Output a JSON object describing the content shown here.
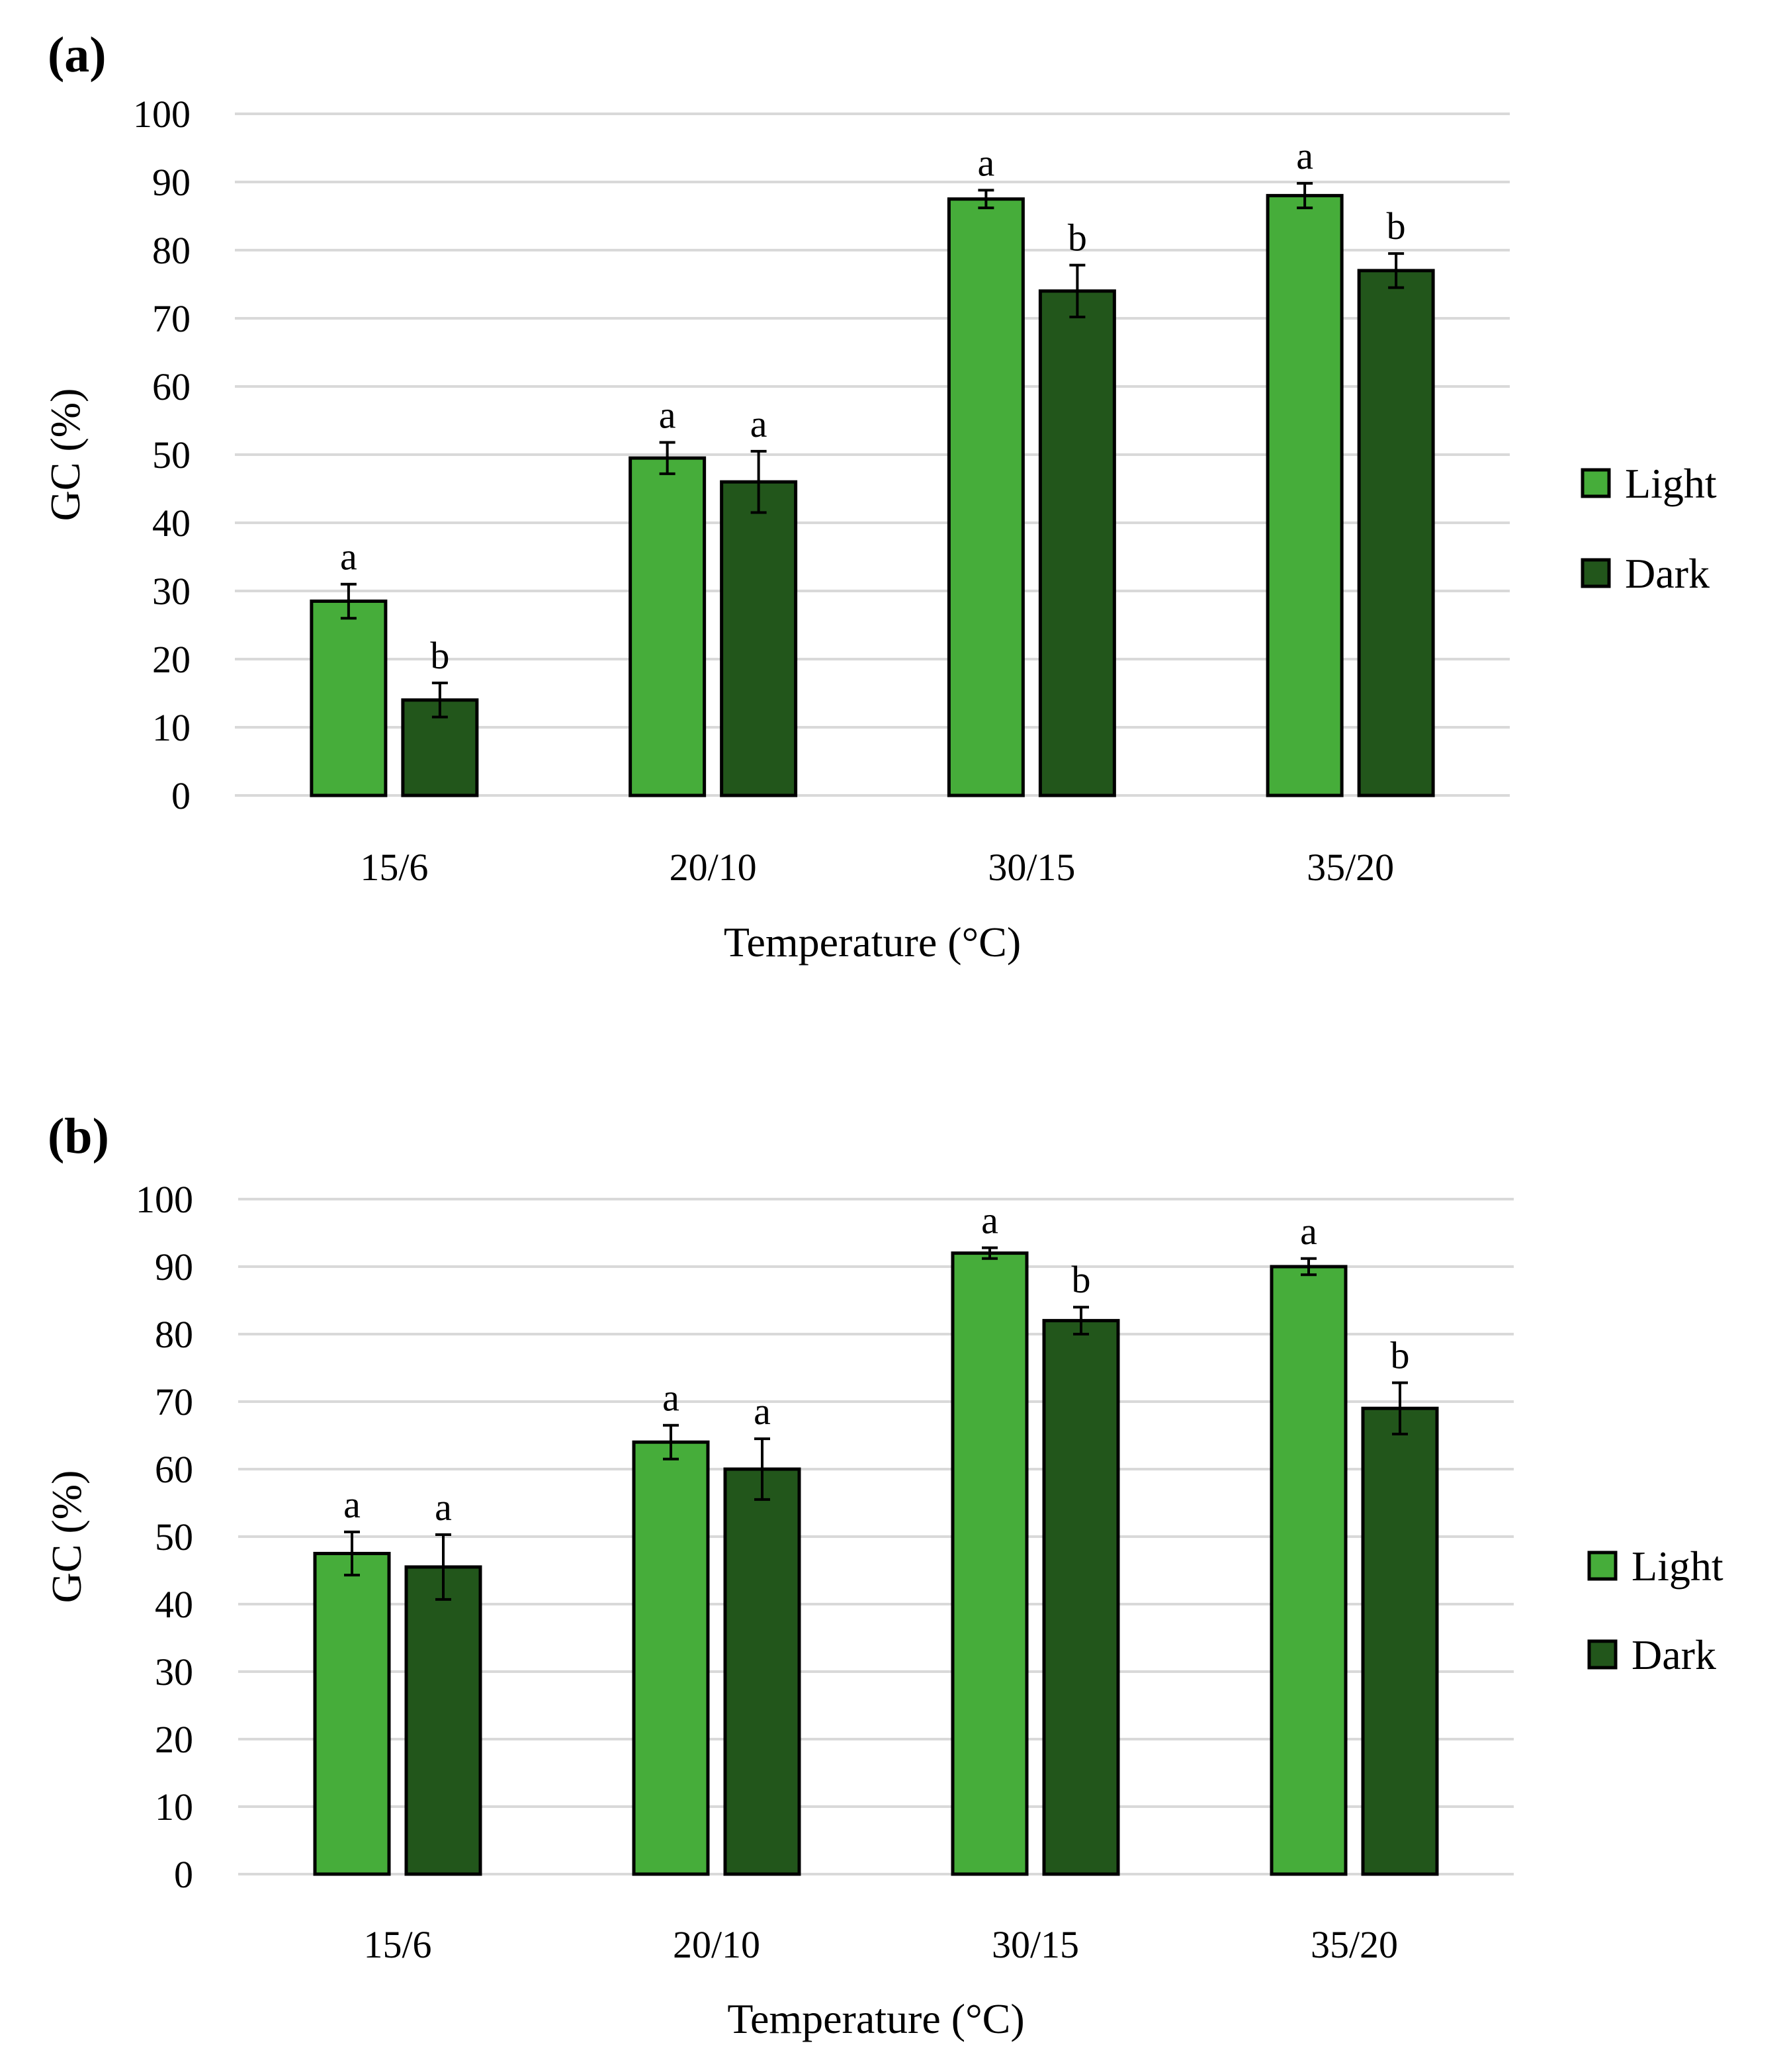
{
  "chart_data": [
    {
      "type": "bar",
      "panel_label": "(a)",
      "title": "",
      "xlabel": "Temperature (°C)",
      "ylabel": "GC (%)",
      "ylim": [
        0,
        100
      ],
      "yticks": [
        0,
        10,
        20,
        30,
        40,
        50,
        60,
        70,
        80,
        90,
        100
      ],
      "categories": [
        "15/6",
        "20/10",
        "30/15",
        "35/20"
      ],
      "grid": true,
      "legend_position": "right",
      "series": [
        {
          "name": "Light",
          "color": "#46ad3a",
          "values": [
            28.5,
            49.5,
            87.5,
            88
          ],
          "errors": [
            2.5,
            2.3,
            1.3,
            1.8
          ],
          "letters": [
            "a",
            "a",
            "a",
            "a"
          ]
        },
        {
          "name": "Dark",
          "color": "#22561b",
          "values": [
            14,
            46,
            74,
            77
          ],
          "errors": [
            2.5,
            4.5,
            3.8,
            2.5
          ],
          "letters": [
            "b",
            "a",
            "b",
            "b"
          ]
        }
      ]
    },
    {
      "type": "bar",
      "panel_label": "(b)",
      "title": "",
      "xlabel": "Temperature (°C)",
      "ylabel": "GC (%)",
      "ylim": [
        0,
        100
      ],
      "yticks": [
        0,
        10,
        20,
        30,
        40,
        50,
        60,
        70,
        80,
        90,
        100
      ],
      "categories": [
        "15/6",
        "20/10",
        "30/15",
        "35/20"
      ],
      "grid": true,
      "legend_position": "right",
      "series": [
        {
          "name": "Light",
          "color": "#46ad3a",
          "values": [
            47.5,
            64,
            92,
            90
          ],
          "errors": [
            3.2,
            2.5,
            0.8,
            1.2
          ],
          "letters": [
            "a",
            "a",
            "a",
            "a"
          ]
        },
        {
          "name": "Dark",
          "color": "#22561b",
          "values": [
            45.5,
            60,
            82,
            69
          ],
          "errors": [
            4.8,
            4.5,
            2,
            3.8
          ],
          "letters": [
            "a",
            "a",
            "b",
            "b"
          ]
        }
      ]
    }
  ]
}
